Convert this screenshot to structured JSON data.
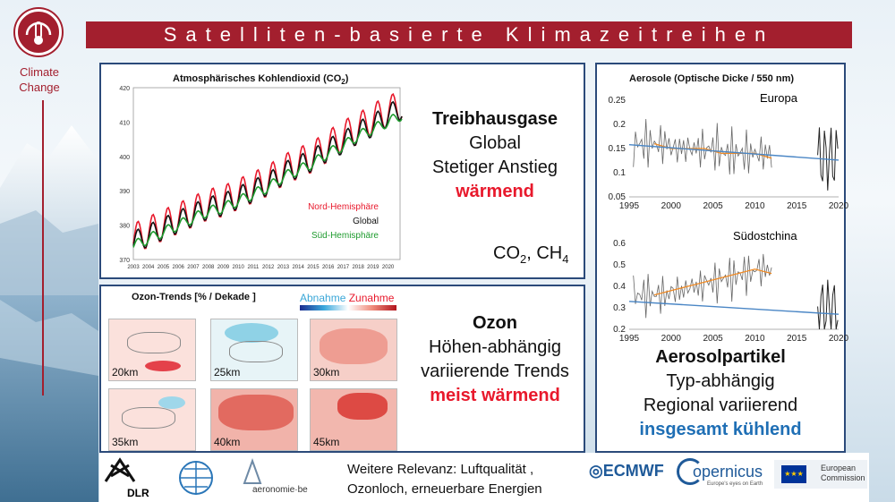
{
  "logo": {
    "line1": "Climate",
    "line2": "Change"
  },
  "title": "Satelliten-basierte Klimazeitreihen",
  "co2": {
    "chart_title": "Atmosphärisches Kohlendioxid (CO",
    "chart_title_sub": "2",
    "chart_title_end": ")",
    "heading": "Treibhausgase",
    "line1": "Global",
    "line2": "Stetiger Anstieg",
    "line3": "wärmend",
    "gases_prefix": "CO",
    "gases_sub1": "2",
    "gases_mid": ", CH",
    "gases_sub2": "4",
    "legend_north": "Nord-Hemisphäre",
    "legend_global": "Global",
    "legend_south": "Süd-Hemisphäre",
    "colors": {
      "north": "#e8192c",
      "global": "#111111",
      "south": "#1e9b2e"
    }
  },
  "ozone": {
    "chart_title": "Ozon-Trends [% / Dekade ]",
    "scale_low": "Abnahme",
    "scale_high": "Zunahme",
    "heading": "Ozon",
    "line1": "Höhen-abhängig",
    "line2": "variierende Trends",
    "line3": "meist wärmend",
    "maps": [
      "20km",
      "25km",
      "30km",
      "35km",
      "40km",
      "45km"
    ]
  },
  "aerosol": {
    "chart_title": "Aerosole (Optische Dicke / 550 nm)",
    "region1": "Europa",
    "region2": "Südostchina",
    "heading": "Aerosolpartikel",
    "line1": "Typ-abhängig",
    "line2": "Regional variierend",
    "line3": "insgesamt kühlend"
  },
  "footer": {
    "relevance_line1": "Weitere Relevanz: Luftqualität ,",
    "relevance_line2": "Ozonloch, erneuerbare Energien",
    "dlr": "DLR",
    "aeronomie": "aeronomie·be",
    "ecmwf": "ECMWF",
    "copernicus": "opernicus",
    "copernicus_tag": "Europe's eyes on Earth",
    "ec_line1": "European",
    "ec_line2": "Commission"
  },
  "chart_data": [
    {
      "type": "line",
      "title": "Atmosphärisches Kohlendioxid (CO2)",
      "x": [
        2003,
        2004,
        2005,
        2006,
        2007,
        2008,
        2009,
        2010,
        2011,
        2012,
        2013,
        2014,
        2015,
        2016,
        2017,
        2018,
        2019,
        2020
      ],
      "ylim": [
        370,
        420
      ],
      "yticks": [
        370,
        380,
        390,
        400,
        410,
        420
      ],
      "xticks": [
        "2003",
        "2004",
        "2005",
        "2006",
        "2007",
        "2008",
        "2009",
        "2010",
        "2011",
        "2012",
        "2013",
        "2014",
        "2015",
        "2016",
        "2017",
        "2018",
        "2019",
        "2020"
      ],
      "series": [
        {
          "name": "Nord-Hemisphäre",
          "values": [
            376,
            378,
            380,
            382,
            384,
            386,
            387,
            389,
            391,
            393,
            396,
            398,
            400,
            403,
            406,
            408,
            411,
            413
          ]
        },
        {
          "name": "Global",
          "values": [
            375,
            377,
            379,
            381,
            383,
            385,
            386,
            388,
            390,
            392,
            395,
            397,
            399,
            402,
            404,
            407,
            409,
            412
          ]
        },
        {
          "name": "Süd-Hemisphäre",
          "values": [
            374,
            376,
            378,
            380,
            382,
            384,
            385,
            387,
            389,
            391,
            394,
            396,
            398,
            401,
            403,
            406,
            408,
            410
          ]
        }
      ],
      "legend": "bottom-right"
    },
    {
      "type": "line",
      "title": "Europa",
      "x": [
        1998,
        2000,
        2002,
        2004,
        2006,
        2008,
        2010,
        2012,
        2018,
        2019,
        2020
      ],
      "ylim": [
        0.05,
        0.25
      ],
      "yticks": [
        0.05,
        0.1,
        0.15,
        0.2,
        0.25
      ],
      "xticks": [
        "1995",
        "2000",
        "2005",
        "2010",
        "2015",
        "2020"
      ],
      "values": [
        0.16,
        0.15,
        0.15,
        0.15,
        0.14,
        0.14,
        0.14,
        0.13,
        0.13,
        0.14,
        0.13
      ],
      "trend": [
        0.158,
        0.126
      ]
    },
    {
      "type": "line",
      "title": "Südostchina",
      "x": [
        1998,
        2000,
        2002,
        2004,
        2006,
        2008,
        2010,
        2012,
        2018,
        2019,
        2020
      ],
      "ylim": [
        0.2,
        0.6
      ],
      "yticks": [
        0.2,
        0.3,
        0.4,
        0.5,
        0.6
      ],
      "xticks": [
        "1995",
        "2000",
        "2005",
        "2010",
        "2015",
        "2020"
      ],
      "values": [
        0.36,
        0.38,
        0.4,
        0.42,
        0.44,
        0.46,
        0.48,
        0.46,
        0.36,
        0.34,
        0.3
      ],
      "trend": [
        0.33,
        0.27
      ]
    }
  ]
}
